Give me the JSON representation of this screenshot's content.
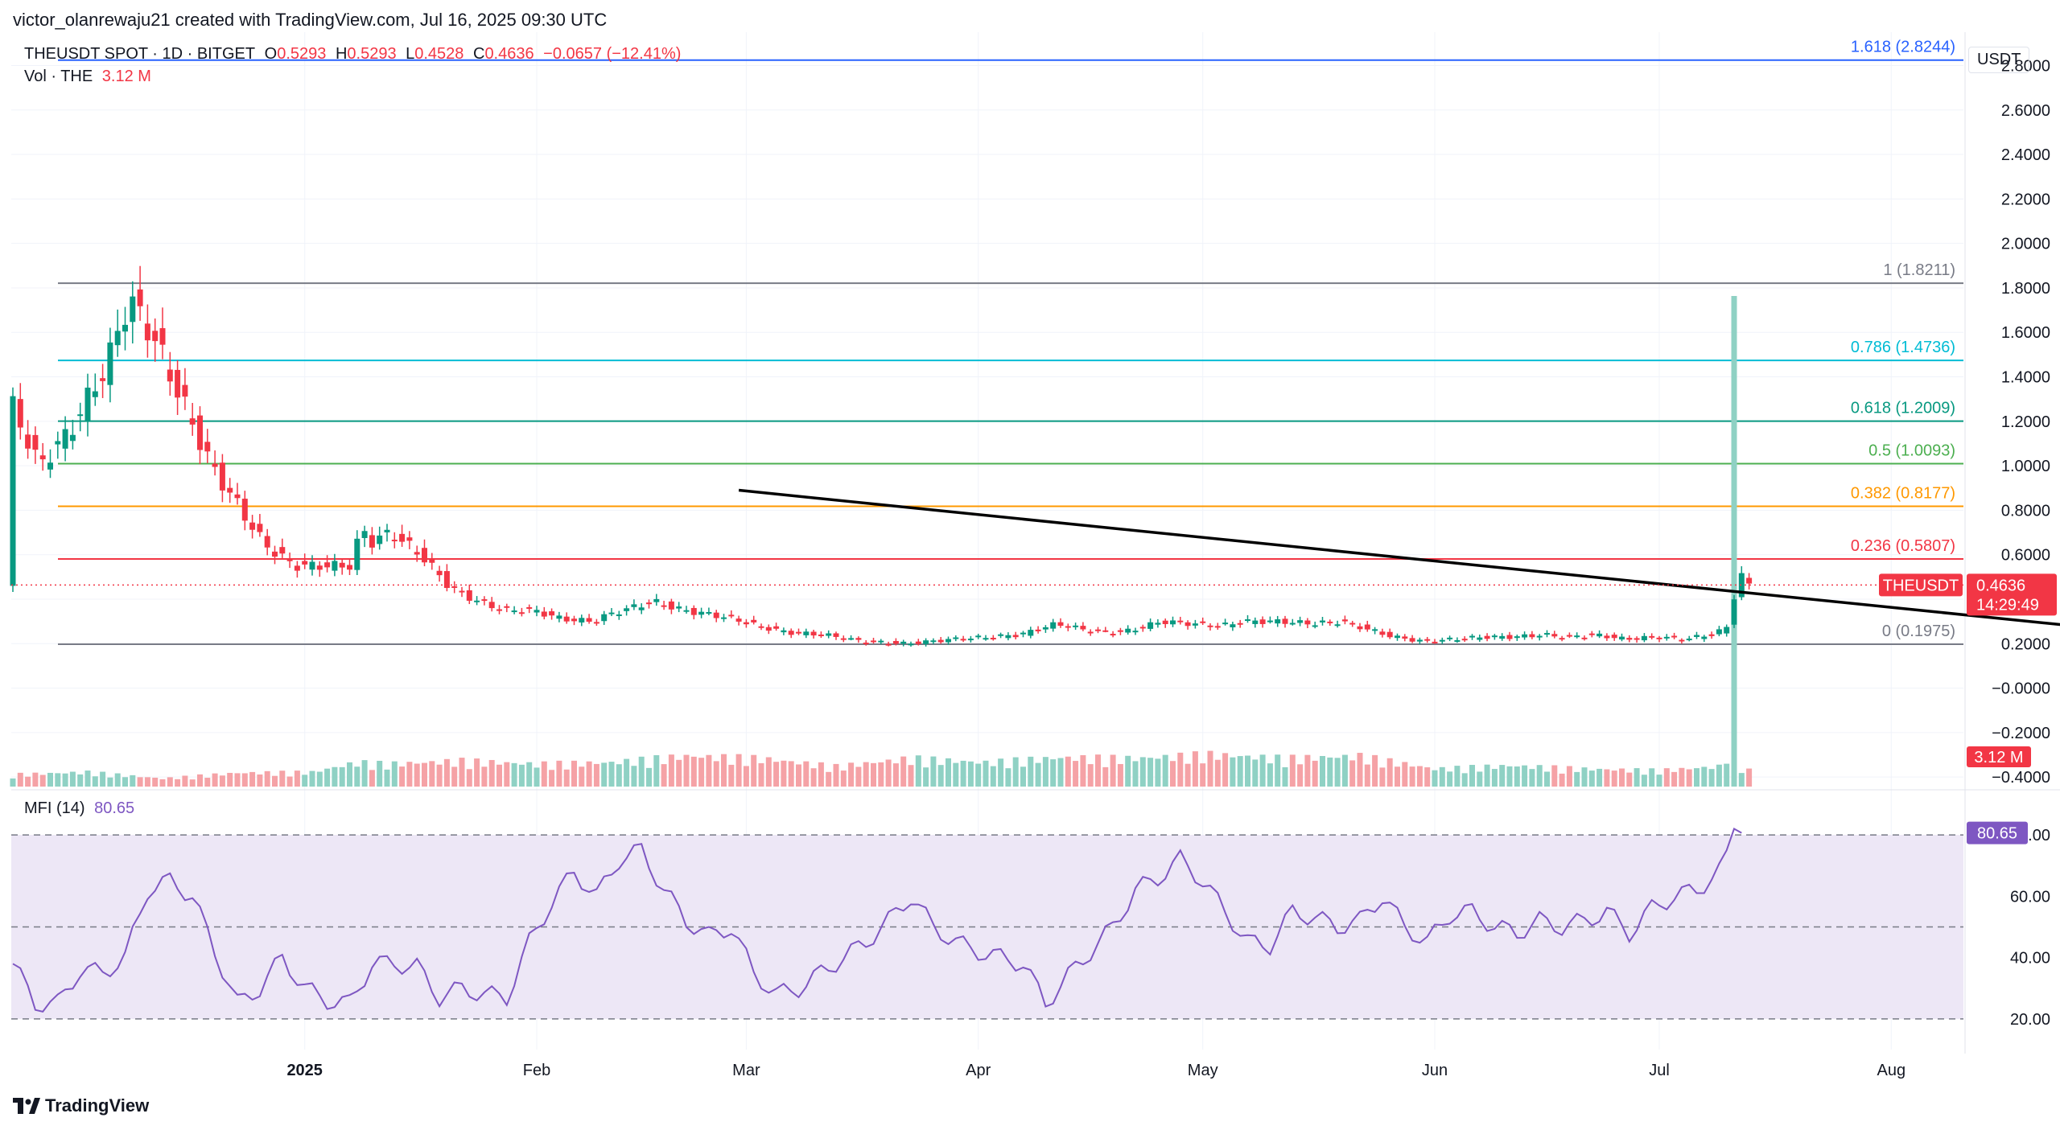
{
  "top_bar": {
    "created_by": "victor_olanrewaju21 created with TradingView.com, Jul 16, 2025 09:30 UTC"
  },
  "header": {
    "symbol": "THEUSDT SPOT · 1D · BITGET",
    "o_label": "O",
    "o_value": "0.5293",
    "h_label": "H",
    "h_value": "0.5293",
    "l_label": "L",
    "l_value": "0.4528",
    "c_label": "C",
    "c_value": "0.4636",
    "change": "−0.0657 (−12.41%)",
    "vol_label": "Vol · THE",
    "vol_value": "3.12 M"
  },
  "currency": "USDT",
  "colors": {
    "up": "#089981",
    "down": "#f23645",
    "vol_up": "#8fd1c4",
    "vol_down": "#f5a2a6",
    "mfi": "#7e57c2",
    "mfi_band": "#ede7f6",
    "blue": "#2962ff"
  },
  "chart_data": [
    {
      "type": "candlestick",
      "title": "THEUSDT SPOT · 1D · BITGET",
      "ylim": [
        -0.45,
        2.95
      ],
      "y_ticks": [
        "2.8000",
        "2.6000",
        "2.4000",
        "2.2000",
        "2.0000",
        "1.8000",
        "1.6000",
        "1.4000",
        "1.2000",
        "1.0000",
        "0.8000",
        "0.6000",
        "0.4000",
        "0.2000",
        "−0.0000",
        "−0.2000",
        "−0.4000"
      ],
      "x_ticks": [
        "2025",
        "Feb",
        "Mar",
        "Apr",
        "May",
        "Jun",
        "Jul",
        "Aug"
      ],
      "x_tick_days": [
        39,
        70,
        98,
        129,
        159,
        190,
        220,
        251
      ],
      "fib_levels": [
        {
          "label": "1.618 (2.8244)",
          "value": 2.8244,
          "color": "#2962ff"
        },
        {
          "label": "1 (1.8211)",
          "value": 1.8211,
          "color": "#787b86"
        },
        {
          "label": "0.786 (1.4736)",
          "value": 1.4736,
          "color": "#00bcd4"
        },
        {
          "label": "0.618 (1.2009)",
          "value": 1.2009,
          "color": "#089981"
        },
        {
          "label": "0.5 (1.0093)",
          "value": 1.0093,
          "color": "#4caf50"
        },
        {
          "label": "0.382 (0.8177)",
          "value": 0.8177,
          "color": "#ff9800"
        },
        {
          "label": "0.236 (0.5807)",
          "value": 0.5807,
          "color": "#f23645"
        },
        {
          "label": "0 (0.1975)",
          "value": 0.1975,
          "color": "#787b86"
        }
      ],
      "trendline": {
        "from": [
          97,
          0.89
        ],
        "to": [
          287,
          0.24
        ]
      },
      "last_price": {
        "label": "THEUSDT",
        "value": "0.4636",
        "countdown": "14:29:49",
        "y": 0.4636
      },
      "volume_label": "3.12 M",
      "anchors": [
        [
          0,
          1.3
        ],
        [
          4,
          1.0
        ],
        [
          8,
          1.15
        ],
        [
          13,
          1.45
        ],
        [
          16,
          1.75
        ],
        [
          19,
          1.6
        ],
        [
          23,
          1.3
        ],
        [
          27,
          1.0
        ],
        [
          30,
          0.85
        ],
        [
          34,
          0.65
        ],
        [
          38,
          0.55
        ],
        [
          40,
          0.55
        ],
        [
          44,
          0.55
        ],
        [
          46,
          0.55
        ],
        [
          47,
          0.75
        ],
        [
          48,
          0.65
        ],
        [
          51,
          0.7
        ],
        [
          55,
          0.6
        ],
        [
          59,
          0.45
        ],
        [
          62,
          0.4
        ],
        [
          66,
          0.35
        ],
        [
          70,
          0.35
        ],
        [
          74,
          0.31
        ],
        [
          78,
          0.3
        ],
        [
          80,
          0.33
        ],
        [
          83,
          0.36
        ],
        [
          86,
          0.39
        ],
        [
          90,
          0.35
        ],
        [
          94,
          0.33
        ],
        [
          97,
          0.31
        ],
        [
          100,
          0.28
        ],
        [
          104,
          0.25
        ],
        [
          109,
          0.24
        ],
        [
          114,
          0.21
        ],
        [
          120,
          0.2
        ],
        [
          126,
          0.22
        ],
        [
          131,
          0.23
        ],
        [
          135,
          0.24
        ],
        [
          137,
          0.26
        ],
        [
          140,
          0.29
        ],
        [
          144,
          0.26
        ],
        [
          148,
          0.25
        ],
        [
          150,
          0.26
        ],
        [
          154,
          0.3
        ],
        [
          158,
          0.29
        ],
        [
          162,
          0.28
        ],
        [
          165,
          0.3
        ],
        [
          170,
          0.3
        ],
        [
          174,
          0.29
        ],
        [
          178,
          0.3
        ],
        [
          181,
          0.27
        ],
        [
          185,
          0.23
        ],
        [
          189,
          0.21
        ],
        [
          193,
          0.22
        ],
        [
          197,
          0.23
        ],
        [
          201,
          0.23
        ],
        [
          205,
          0.24
        ],
        [
          208,
          0.23
        ],
        [
          212,
          0.24
        ],
        [
          216,
          0.22
        ],
        [
          220,
          0.23
        ],
        [
          224,
          0.22
        ],
        [
          227,
          0.24
        ],
        [
          228,
          0.24
        ],
        [
          229,
          0.27
        ],
        [
          230,
          0.28
        ],
        [
          231,
          0.55
        ],
        [
          232,
          0.46
        ]
      ],
      "volume_anchors": [
        [
          0,
          0.15
        ],
        [
          10,
          0.18
        ],
        [
          20,
          0.1
        ],
        [
          30,
          0.17
        ],
        [
          40,
          0.18
        ],
        [
          46,
          0.3
        ],
        [
          50,
          0.28
        ],
        [
          60,
          0.32
        ],
        [
          70,
          0.28
        ],
        [
          80,
          0.3
        ],
        [
          90,
          0.38
        ],
        [
          100,
          0.35
        ],
        [
          110,
          0.25
        ],
        [
          120,
          0.35
        ],
        [
          130,
          0.3
        ],
        [
          140,
          0.36
        ],
        [
          150,
          0.35
        ],
        [
          160,
          0.4
        ],
        [
          170,
          0.35
        ],
        [
          180,
          0.38
        ],
        [
          190,
          0.22
        ],
        [
          200,
          0.26
        ],
        [
          210,
          0.22
        ],
        [
          220,
          0.2
        ],
        [
          228,
          0.25
        ],
        [
          229,
          0.36
        ],
        [
          230,
          1.0
        ],
        [
          231,
          0.25
        ],
        [
          232,
          0.2
        ]
      ]
    },
    {
      "type": "line",
      "title": "MFI (14)",
      "series": [
        {
          "name": "MFI (14)",
          "last": "80.65"
        }
      ],
      "ylim": [
        10,
        90
      ],
      "y_ticks": [
        "80.00",
        "60.00",
        "40.00",
        "20.00"
      ],
      "bands": {
        "upper": 80,
        "middle": 50,
        "lower": 20
      },
      "current_value": "80.65",
      "anchors": [
        [
          0,
          38
        ],
        [
          3,
          25
        ],
        [
          6,
          25
        ],
        [
          9,
          36
        ],
        [
          12,
          35
        ],
        [
          15,
          40
        ],
        [
          18,
          62
        ],
        [
          21,
          65
        ],
        [
          24,
          60
        ],
        [
          27,
          42
        ],
        [
          30,
          25
        ],
        [
          33,
          30
        ],
        [
          36,
          40
        ],
        [
          39,
          30
        ],
        [
          42,
          26
        ],
        [
          45,
          25
        ],
        [
          48,
          38
        ],
        [
          51,
          38
        ],
        [
          54,
          37
        ],
        [
          57,
          27
        ],
        [
          60,
          30
        ],
        [
          63,
          28
        ],
        [
          66,
          27
        ],
        [
          69,
          45
        ],
        [
          72,
          58
        ],
        [
          75,
          68
        ],
        [
          78,
          60
        ],
        [
          81,
          72
        ],
        [
          84,
          75
        ],
        [
          87,
          62
        ],
        [
          90,
          52
        ],
        [
          93,
          47
        ],
        [
          96,
          50
        ],
        [
          99,
          35
        ],
        [
          102,
          28
        ],
        [
          105,
          30
        ],
        [
          108,
          35
        ],
        [
          111,
          40
        ],
        [
          114,
          45
        ],
        [
          117,
          52
        ],
        [
          120,
          60
        ],
        [
          123,
          50
        ],
        [
          126,
          45
        ],
        [
          129,
          42
        ],
        [
          132,
          40
        ],
        [
          135,
          38
        ],
        [
          138,
          25
        ],
        [
          141,
          34
        ],
        [
          144,
          42
        ],
        [
          147,
          50
        ],
        [
          150,
          62
        ],
        [
          153,
          66
        ],
        [
          156,
          72
        ],
        [
          159,
          65
        ],
        [
          162,
          55
        ],
        [
          165,
          45
        ],
        [
          168,
          44
        ],
        [
          171,
          55
        ],
        [
          174,
          53
        ],
        [
          177,
          50
        ],
        [
          180,
          52
        ],
        [
          183,
          60
        ],
        [
          186,
          50
        ],
        [
          189,
          45
        ],
        [
          192,
          54
        ],
        [
          195,
          55
        ],
        [
          198,
          50
        ],
        [
          201,
          48
        ],
        [
          204,
          52
        ],
        [
          207,
          50
        ],
        [
          210,
          52
        ],
        [
          213,
          55
        ],
        [
          216,
          48
        ],
        [
          219,
          56
        ],
        [
          222,
          60
        ],
        [
          225,
          62
        ],
        [
          228,
          68
        ],
        [
          229,
          75
        ],
        [
          230,
          82
        ],
        [
          231,
          80.65
        ]
      ]
    }
  ]
}
